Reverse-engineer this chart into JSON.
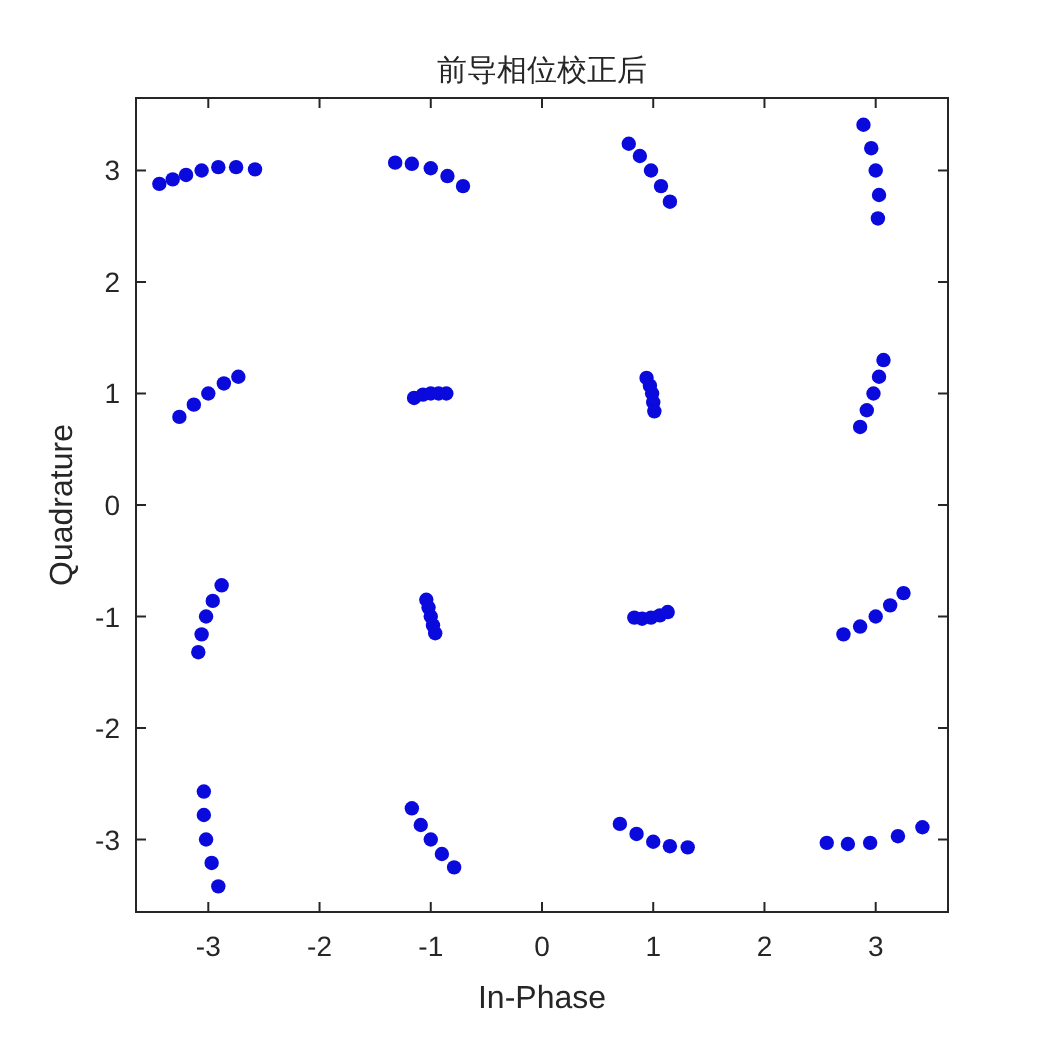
{
  "chart_data": {
    "type": "scatter",
    "title": "前导相位校正后",
    "xlabel": "In-Phase",
    "ylabel": "Quadrature",
    "xlim": [
      -3.65,
      3.65
    ],
    "ylim": [
      -3.65,
      3.65
    ],
    "xticks": [
      -3,
      -2,
      -1,
      0,
      1,
      2,
      3
    ],
    "yticks": [
      -3,
      -2,
      -1,
      0,
      1,
      2,
      3
    ],
    "marker": "circle",
    "series": [
      {
        "color": "#0a0adc",
        "x": [
          -3.44,
          -3.32,
          -3.2,
          -3.06,
          -2.91,
          -2.75,
          -2.58,
          -1.32,
          -1.17,
          -1.0,
          -0.85,
          -0.71,
          0.78,
          0.88,
          0.98,
          1.07,
          1.15,
          2.89,
          2.96,
          3.0,
          3.03,
          3.02,
          -3.26,
          -3.13,
          -3.0,
          -2.86,
          -2.73,
          -1.15,
          -1.07,
          -1.0,
          -0.93,
          -0.86,
          0.94,
          0.97,
          0.99,
          1.0,
          1.01,
          3.07,
          3.03,
          2.98,
          2.92,
          2.86,
          -2.88,
          -2.96,
          -3.02,
          -3.06,
          -3.09,
          -1.04,
          -1.02,
          -1.0,
          -0.98,
          -0.96,
          0.83,
          0.9,
          0.98,
          1.06,
          1.13,
          2.71,
          2.86,
          3.0,
          3.13,
          3.25,
          -3.04,
          -3.04,
          -3.02,
          -2.97,
          -2.91,
          -1.17,
          -1.09,
          -1.0,
          -0.9,
          -0.79,
          0.7,
          0.85,
          1.0,
          1.15,
          1.31,
          2.56,
          2.75,
          2.95,
          3.2,
          3.42
        ],
        "values": [
          2.88,
          2.92,
          2.96,
          3.0,
          3.03,
          3.03,
          3.01,
          3.07,
          3.06,
          3.02,
          2.95,
          2.86,
          3.24,
          3.13,
          3.0,
          2.86,
          2.72,
          3.41,
          3.2,
          3.0,
          2.78,
          2.57,
          0.79,
          0.9,
          1.0,
          1.09,
          1.15,
          0.96,
          0.99,
          1.0,
          1.0,
          1.0,
          1.14,
          1.07,
          1.0,
          0.92,
          0.84,
          1.3,
          1.15,
          1.0,
          0.85,
          0.7,
          -0.72,
          -0.86,
          -1.0,
          -1.16,
          -1.32,
          -0.85,
          -0.92,
          -1.0,
          -1.08,
          -1.15,
          -1.01,
          -1.02,
          -1.01,
          -0.99,
          -0.96,
          -1.16,
          -1.09,
          -1.0,
          -0.9,
          -0.79,
          -2.57,
          -2.78,
          -3.0,
          -3.21,
          -3.42,
          -2.72,
          -2.87,
          -3.0,
          -3.13,
          -3.25,
          -2.86,
          -2.95,
          -3.02,
          -3.06,
          -3.07,
          -3.03,
          -3.04,
          -3.03,
          -2.97,
          -2.89
        ]
      }
    ]
  }
}
